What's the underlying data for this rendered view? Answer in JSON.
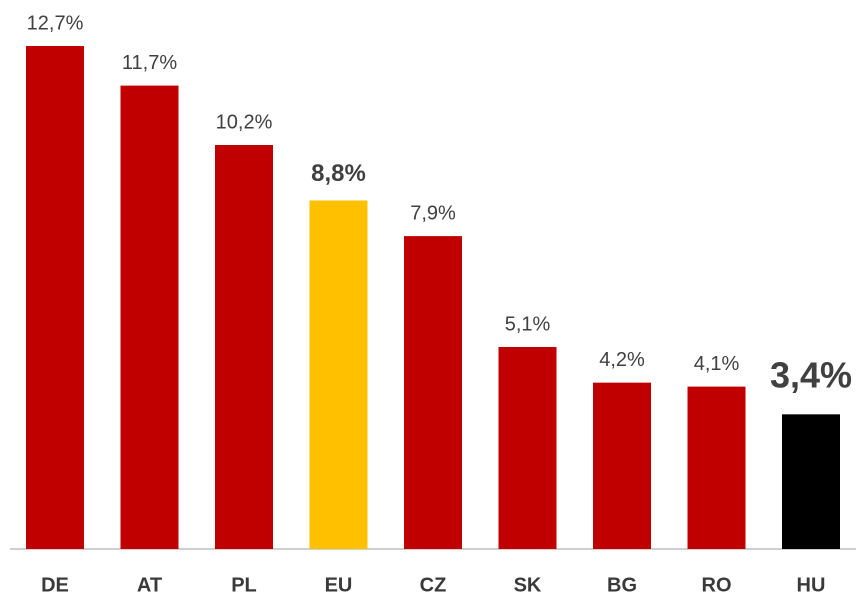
{
  "chart_data": {
    "type": "bar",
    "categories": [
      "DE",
      "AT",
      "PL",
      "EU",
      "CZ",
      "SK",
      "BG",
      "RO",
      "HU"
    ],
    "values": [
      12.7,
      11.7,
      10.2,
      8.8,
      7.9,
      5.1,
      4.2,
      4.1,
      3.4
    ],
    "value_labels": [
      "12,7%",
      "11,7%",
      "10,2%",
      "8,8%",
      "7,9%",
      "5,1%",
      "4,2%",
      "4,1%",
      "3,4%"
    ],
    "colors": [
      "#c00000",
      "#c00000",
      "#c00000",
      "#ffc000",
      "#c00000",
      "#c00000",
      "#c00000",
      "#c00000",
      "#000000"
    ]
  }
}
